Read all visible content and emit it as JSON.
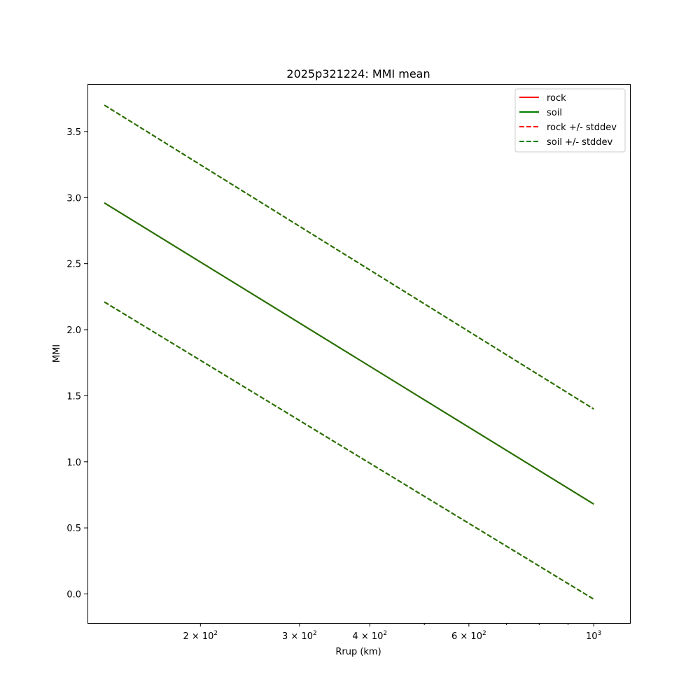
{
  "chart_data": {
    "type": "line",
    "title": "2025p321224: MMI mean",
    "xlabel": "Rrup (km)",
    "ylabel": "MMI",
    "xscale": "log",
    "xlim": [
      126,
      1160
    ],
    "ylim": [
      -0.22,
      3.86
    ],
    "grid": false,
    "legend_position": "top-right",
    "x_ticks": [
      {
        "value": 200,
        "mantissa": "2",
        "base": "10",
        "exp": "2"
      },
      {
        "value": 300,
        "mantissa": "3",
        "base": "10",
        "exp": "2"
      },
      {
        "value": 400,
        "mantissa": "4",
        "base": "10",
        "exp": "2"
      },
      {
        "value": 600,
        "mantissa": "6",
        "base": "10",
        "exp": "2"
      },
      {
        "value": 1000,
        "mantissa": "",
        "base": "10",
        "exp": "3"
      }
    ],
    "x_minor_ticks": [
      500,
      700,
      800,
      900
    ],
    "y_ticks": [
      {
        "value": 0.0,
        "label": "0.0"
      },
      {
        "value": 0.5,
        "label": "0.5"
      },
      {
        "value": 1.0,
        "label": "1.0"
      },
      {
        "value": 1.5,
        "label": "1.5"
      },
      {
        "value": 2.0,
        "label": "2.0"
      },
      {
        "value": 2.5,
        "label": "2.5"
      },
      {
        "value": 3.0,
        "label": "3.0"
      },
      {
        "value": 3.5,
        "label": "3.5"
      }
    ],
    "x": [
      135,
      1000
    ],
    "series": [
      {
        "name": "rock",
        "style": "solid",
        "color": "#ff0000",
        "values": [
          2.96,
          0.68
        ]
      },
      {
        "name": "soil",
        "style": "solid",
        "color": "#008000",
        "values": [
          2.96,
          0.68
        ]
      },
      {
        "name": "rock +/- stddev",
        "style": "dashed",
        "color": "#ff0000",
        "upper": [
          3.7,
          1.4
        ],
        "lower": [
          2.21,
          -0.04
        ]
      },
      {
        "name": "soil +/- stddev",
        "style": "dashed",
        "color": "#008000",
        "upper": [
          3.7,
          1.4
        ],
        "lower": [
          2.21,
          -0.04
        ]
      }
    ],
    "overlap_color": "#2a6e00"
  }
}
